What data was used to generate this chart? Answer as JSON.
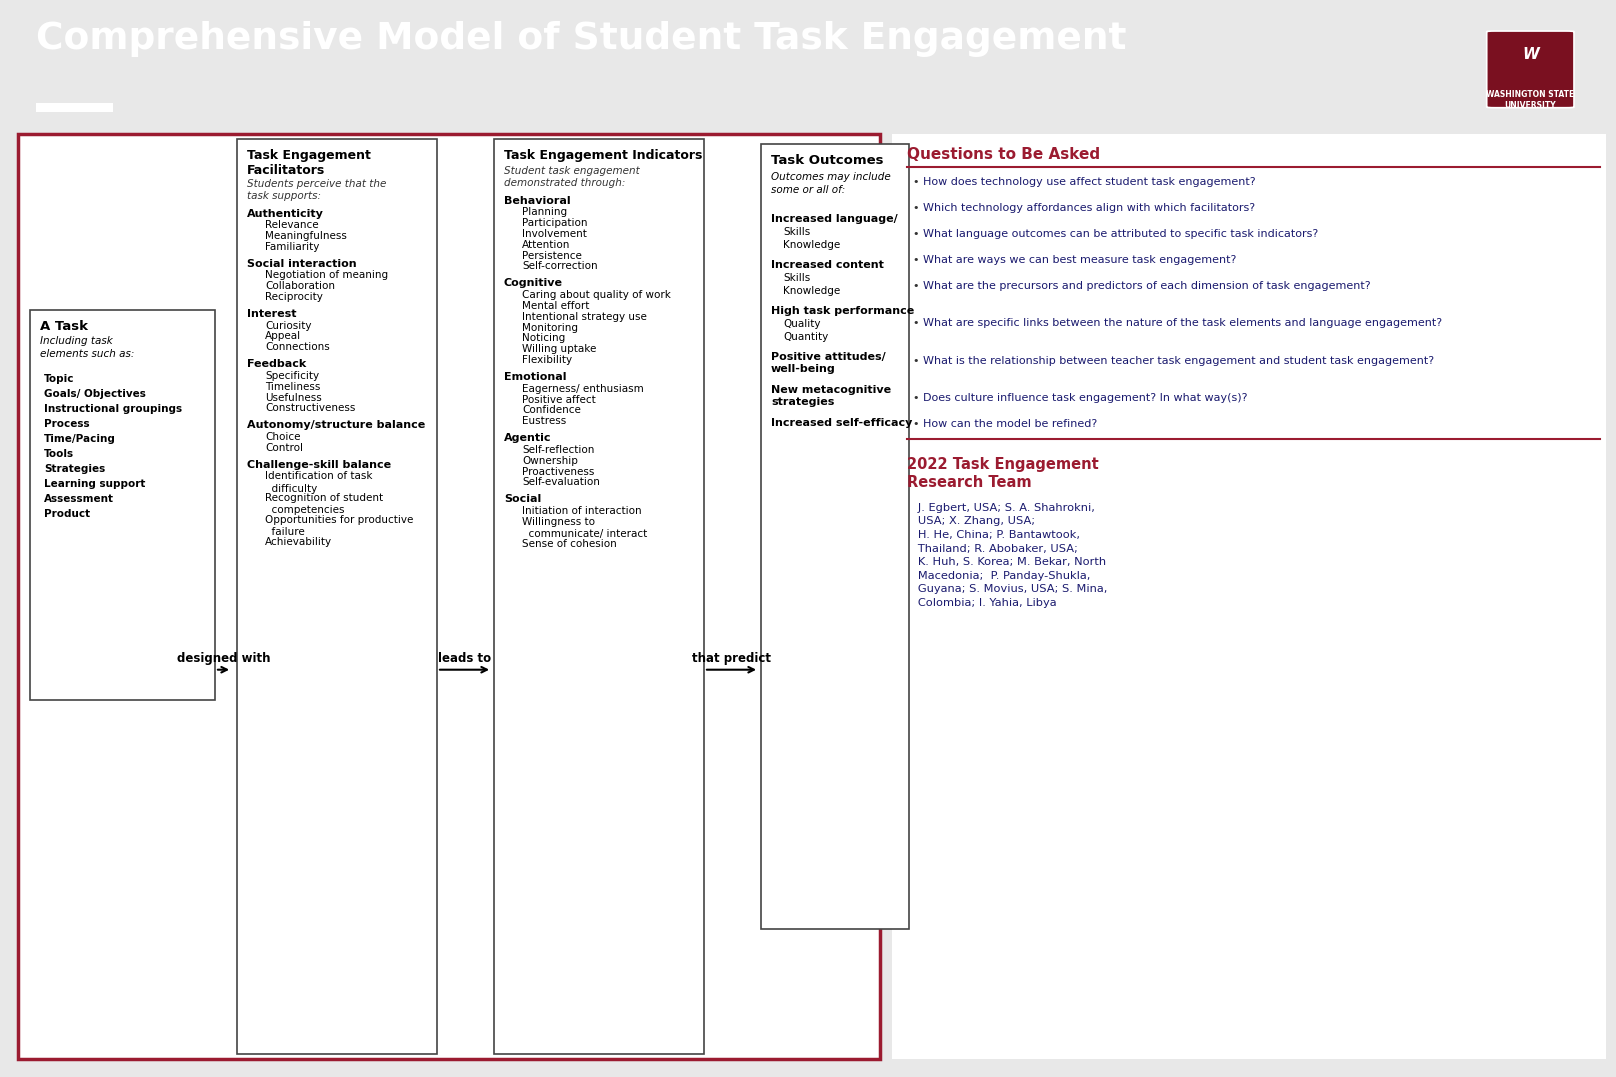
{
  "title": "Comprehensive Model of Student Task Engagement",
  "header_bg": "#9B1B30",
  "header_text_color": "#FFFFFF",
  "body_border": "#9B1B30",
  "box_border": "#444444",
  "question_title_color": "#9B1B30",
  "question_text_color": "#1a1a6e",
  "team_title_color": "#9B1B30",
  "team_text_color": "#1a1a6e",
  "task_items": [
    "Topic",
    "Goals/ Objectives",
    "Instructional groupings",
    "Process",
    "Time/Pacing",
    "Tools",
    "Strategies",
    "Learning support",
    "Assessment",
    "Product"
  ],
  "facilitators_sections": [
    {
      "heading": "Authenticity",
      "items": [
        "Relevance",
        "Meaningfulness",
        "Familiarity"
      ]
    },
    {
      "heading": "Social interaction",
      "items": [
        "Negotiation of meaning",
        "Collaboration",
        "Reciprocity"
      ]
    },
    {
      "heading": "Interest",
      "items": [
        "Curiosity",
        "Appeal",
        "Connections"
      ]
    },
    {
      "heading": "Feedback",
      "items": [
        "Specificity",
        "Timeliness",
        "Usefulness",
        "Constructiveness"
      ]
    },
    {
      "heading": "Autonomy/structure balance",
      "items": [
        "Choice",
        "Control"
      ]
    },
    {
      "heading": "Challenge-skill balance",
      "items": [
        "Identification of task\n  difficulty",
        "Recognition of student\n  competencies",
        "Opportunities for productive\n  failure",
        "Achievability"
      ]
    }
  ],
  "indicators_sections": [
    {
      "heading": "Behavioral",
      "items": [
        "Planning",
        "Participation",
        "Involvement",
        "Attention",
        "Persistence",
        "Self-correction"
      ]
    },
    {
      "heading": "Cognitive",
      "items": [
        "Caring about quality of work",
        "Mental effort",
        "Intentional strategy use",
        "Monitoring",
        "Noticing",
        "Willing uptake",
        "Flexibility"
      ]
    },
    {
      "heading": "Emotional",
      "items": [
        "Eagerness/ enthusiasm",
        "Positive affect",
        "Confidence",
        "Eustress"
      ]
    },
    {
      "heading": "Agentic",
      "items": [
        "Self-reflection",
        "Ownership",
        "Proactiveness",
        "Self-evaluation"
      ]
    },
    {
      "heading": "Social",
      "items": [
        "Initiation of interaction",
        "Willingness to\n  communicate/ interact",
        "Sense of cohesion"
      ]
    }
  ],
  "outcomes_sections": [
    {
      "heading": "Increased language/",
      "items": [
        "Skills",
        "Knowledge"
      ]
    },
    {
      "heading": "Increased content",
      "items": [
        "Skills",
        "Knowledge"
      ]
    },
    {
      "heading": "High task performance",
      "items": [
        "Quality",
        "Quantity"
      ]
    },
    {
      "heading": "Positive attitudes/\nwell-being",
      "items": []
    },
    {
      "heading": "New metacognitive\nstrategies",
      "items": []
    },
    {
      "heading": "Increased self-efficacy",
      "items": []
    }
  ],
  "questions_title": "Questions to Be Asked",
  "questions": [
    "How does technology use affect student task engagement?",
    "Which technology affordances align with which facilitators?",
    "What language outcomes can be attributed to specific task indicators?",
    "What are ways we can best measure task engagement?",
    "What are the precursors and predictors of each dimension of task engagement?",
    "What are specific links between the nature of the task elements and language engagement?",
    "What is the relationship between teacher task engagement and student task engagement?",
    "Does culture influence task engagement? In what way(s)?",
    "How can the model be refined?"
  ],
  "team_title": "2022 Task Engagement\nResearch Team",
  "team_text": "   J. Egbert, USA; S. A. Shahrokni,\n   USA; X. Zhang, USA;\n   H. He, China; P. Bantawtook,\n   Thailand; R. Abobaker, USA;\n   K. Huh, S. Korea; M. Bekar, North\n   Macedonia;  P. Panday-Shukla,\n   Guyana; S. Movius, USA; S. Mina,\n   Colombia; I. Yahia, Libya"
}
